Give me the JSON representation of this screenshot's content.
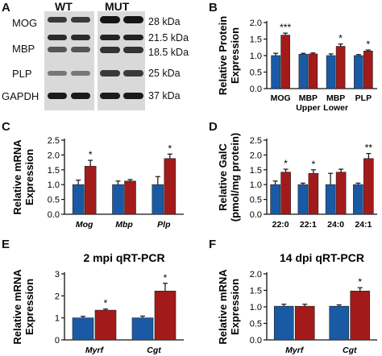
{
  "colors": {
    "wt": "#1a5aa5",
    "mut": "#a31a1a"
  },
  "panel_a": {
    "letter": "A",
    "group_labels": [
      "WT",
      "MUT"
    ],
    "rows": [
      {
        "protein": "MOG",
        "kda": "28 kDa"
      },
      {
        "protein": "MBP",
        "kda": "21.5 kDa"
      },
      {
        "protein": "",
        "kda": "18.5 kDa"
      },
      {
        "protein": "PLP",
        "kda": "25 kDa"
      },
      {
        "protein": "GAPDH",
        "kda": "37 kDa"
      }
    ]
  },
  "chart_data": [
    {
      "panel": "B",
      "type": "bar",
      "title": "",
      "ylabel": [
        "Relative Protein",
        "Expression"
      ],
      "ylim": [
        0,
        2
      ],
      "yticks": [
        "0.0",
        "0.5",
        "1.0",
        "1.5",
        "2.0"
      ],
      "categories": [
        [
          "MOG"
        ],
        [
          "MBP",
          "Upper"
        ],
        [
          "MBP",
          "Lower"
        ],
        [
          "PLP"
        ]
      ],
      "italic_categories": false,
      "series": [
        {
          "values": [
            1.0,
            1.04,
            1.0,
            1.0
          ],
          "errors": [
            0.07,
            0.03,
            0.05,
            0.03
          ]
        },
        {
          "values": [
            1.62,
            1.05,
            1.28,
            1.14
          ],
          "errors": [
            0.06,
            0.03,
            0.07,
            0.03
          ]
        }
      ],
      "significance": [
        "***",
        "",
        "*",
        "*"
      ]
    },
    {
      "panel": "C",
      "type": "bar",
      "title": "",
      "ylabel": [
        "Relative mRNA",
        "Expression"
      ],
      "ylim": [
        0,
        2.5
      ],
      "yticks": [
        "0.0",
        "0.5",
        "1.0",
        "1.5",
        "2.0",
        "2.5"
      ],
      "categories": [
        [
          "Mog"
        ],
        [
          "Mbp"
        ],
        [
          "Plp"
        ]
      ],
      "italic_categories": true,
      "series": [
        {
          "values": [
            1.0,
            1.0,
            1.0
          ],
          "errors": [
            0.15,
            0.12,
            0.27
          ]
        },
        {
          "values": [
            1.62,
            1.12,
            1.88
          ],
          "errors": [
            0.2,
            0.05,
            0.15
          ]
        }
      ],
      "significance": [
        "*",
        "",
        "*"
      ]
    },
    {
      "panel": "D",
      "type": "bar",
      "title": "",
      "ylabel": [
        "Relative GalC",
        "(pmol/mg protein)"
      ],
      "ylim": [
        0,
        2.5
      ],
      "yticks": [
        "0.0",
        "0.5",
        "1.0",
        "1.5",
        "2.0",
        "2.5"
      ],
      "categories": [
        [
          "22:0"
        ],
        [
          "22:1"
        ],
        [
          "24:0"
        ],
        [
          "24:1"
        ]
      ],
      "italic_categories": false,
      "series": [
        {
          "values": [
            1.0,
            1.0,
            1.0,
            1.0
          ],
          "errors": [
            0.12,
            0.05,
            0.38,
            0.05
          ]
        },
        {
          "values": [
            1.42,
            1.38,
            1.42,
            1.88
          ],
          "errors": [
            0.1,
            0.12,
            0.1,
            0.17
          ]
        }
      ],
      "significance": [
        "*",
        "*",
        "",
        "**"
      ]
    },
    {
      "panel": "E",
      "type": "bar",
      "title": "2 mpi qRT-PCR",
      "ylabel": [
        "Relative mRNA",
        "Expression"
      ],
      "ylim": [
        0,
        3
      ],
      "yticks": [
        "0",
        "1",
        "2",
        "3"
      ],
      "categories": [
        [
          "Myrf"
        ],
        [
          "Cgt"
        ]
      ],
      "italic_categories": true,
      "series": [
        {
          "values": [
            1.0,
            1.0
          ],
          "errors": [
            0.07,
            0.08
          ]
        },
        {
          "values": [
            1.35,
            2.22
          ],
          "errors": [
            0.05,
            0.35
          ]
        }
      ],
      "significance": [
        "*",
        "*"
      ]
    },
    {
      "panel": "F",
      "type": "bar",
      "title": "14 dpi qRT-PCR",
      "ylabel": [
        "Relative mRNA",
        "Expression"
      ],
      "ylim": [
        0,
        2
      ],
      "yticks": [
        "0.0",
        "0.5",
        "1.0",
        "1.5",
        "2.0"
      ],
      "categories": [
        [
          "Myrf"
        ],
        [
          "Cgt"
        ]
      ],
      "italic_categories": true,
      "series": [
        {
          "values": [
            1.02,
            1.02
          ],
          "errors": [
            0.06,
            0.04
          ]
        },
        {
          "values": [
            1.02,
            1.48
          ],
          "errors": [
            0.06,
            0.1
          ]
        }
      ],
      "significance": [
        "",
        "*"
      ]
    }
  ]
}
